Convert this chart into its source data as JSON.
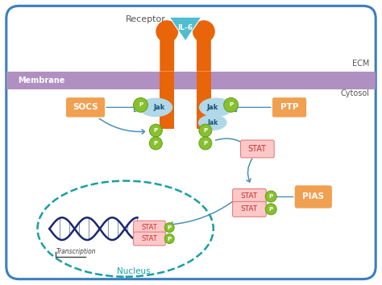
{
  "bg_color": "#ffffff",
  "border_color": "#3a7fbf",
  "membrane_color": "#b090c0",
  "membrane_label": "Membrane",
  "receptor_color": "#e8650a",
  "il6_color": "#50bdd0",
  "il6_label": "IL-6",
  "receptor_label": "Receptor",
  "ecm_label": "ECM",
  "cytosol_label": "Cytosol",
  "nucleus_label": "Nucleus",
  "transcription_label": "Transcription",
  "jak_bg": "#b0d8e8",
  "jak_label": "Jak",
  "p_color": "#88c030",
  "p_border": "#60a010",
  "p_label": "P",
  "stat_box_color": "#ffc8c8",
  "stat_label": "STAT",
  "stat_border": "#e08080",
  "socs_color": "#f0a050",
  "socs_label": "SOCS",
  "ptp_color": "#f0a050",
  "ptp_label": "PTP",
  "pias_color": "#f0a050",
  "pias_label": "PIAS",
  "arrow_color": "#4a90b8",
  "dna_color": "#1a2870",
  "nucleus_dash_color": "#18a0a0",
  "text_dark": "#555555",
  "text_white": "#ffffff"
}
